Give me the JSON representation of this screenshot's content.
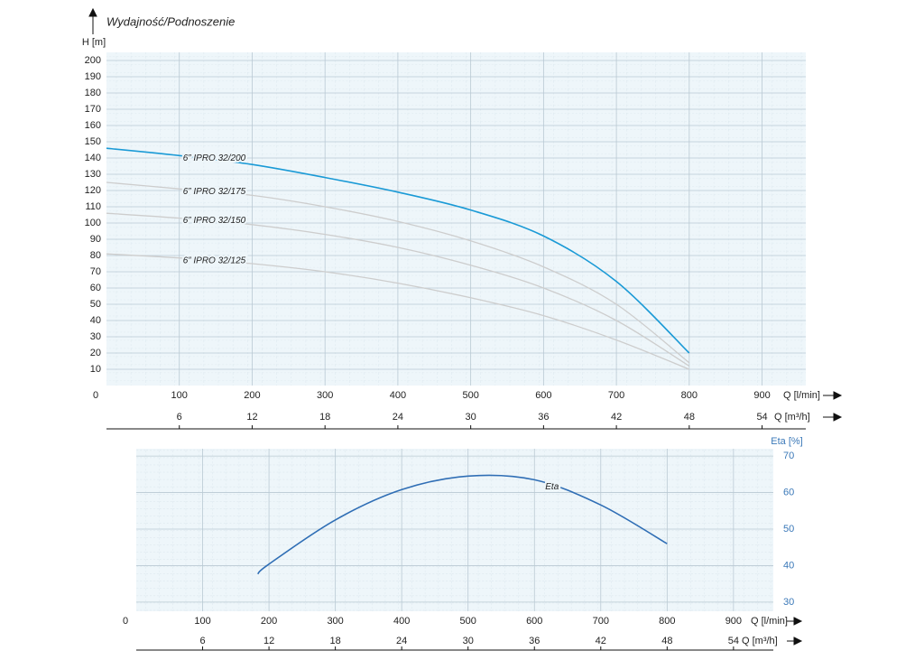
{
  "chart_data": [
    {
      "type": "line",
      "title": "Wydajność/Podnoszenie",
      "y_label": "H [m]",
      "x_label": "Q [l/min]",
      "x2_label": "Q [m³/h]",
      "x": [
        0,
        100,
        200,
        300,
        400,
        500,
        600,
        700,
        800
      ],
      "xlim": [
        0,
        960
      ],
      "xticks": [
        0,
        100,
        200,
        300,
        400,
        500,
        600,
        700,
        800,
        900
      ],
      "x2lim": [
        0,
        57.6
      ],
      "x2ticks": [
        6,
        12,
        18,
        24,
        30,
        36,
        42,
        48,
        54
      ],
      "ylim": [
        0,
        205
      ],
      "yticks": [
        10,
        20,
        30,
        40,
        50,
        60,
        70,
        80,
        90,
        100,
        110,
        120,
        130,
        140,
        150,
        160,
        170,
        180,
        190,
        200
      ],
      "grid": true,
      "series": [
        {
          "name": "6” IPRO 32/200",
          "color": "#1a9ad6",
          "values": [
            146,
            141.5,
            136,
            128,
            119,
            108,
            92,
            64,
            20
          ]
        },
        {
          "name": "6” IPRO 32/175",
          "color": "#cdcdcd",
          "values": [
            125,
            121,
            117,
            110,
            101,
            89,
            73,
            50,
            14
          ]
        },
        {
          "name": "6” IPRO 32/150",
          "color": "#cdcdcd",
          "values": [
            106,
            103,
            99,
            93,
            85,
            74,
            60,
            40,
            12
          ]
        },
        {
          "name": "6” IPRO 32/125",
          "color": "#cdcdcd",
          "values": [
            81,
            78.5,
            75,
            70,
            63,
            54,
            43,
            28,
            10
          ]
        }
      ]
    },
    {
      "type": "line",
      "y_label": "Eta [%]",
      "x_label": "Q [l/min]",
      "x2_label": "Q [m³/h]",
      "x": [
        183,
        200,
        300,
        400,
        500,
        600,
        700,
        800
      ],
      "xlim": [
        0,
        960
      ],
      "xticks": [
        0,
        100,
        200,
        300,
        400,
        500,
        600,
        700,
        800,
        900
      ],
      "x2lim": [
        0,
        57.6
      ],
      "x2ticks": [
        6,
        12,
        18,
        24,
        30,
        36,
        42,
        48,
        54
      ],
      "ylim": [
        27.5,
        72
      ],
      "yticks": [
        30,
        40,
        50,
        60,
        70
      ],
      "grid": true,
      "series": [
        {
          "name": "Eta",
          "color": "#2f6eb5",
          "values": [
            37.7,
            40.4,
            52.5,
            60.8,
            64.5,
            63.5,
            56.6,
            46
          ]
        }
      ]
    }
  ]
}
